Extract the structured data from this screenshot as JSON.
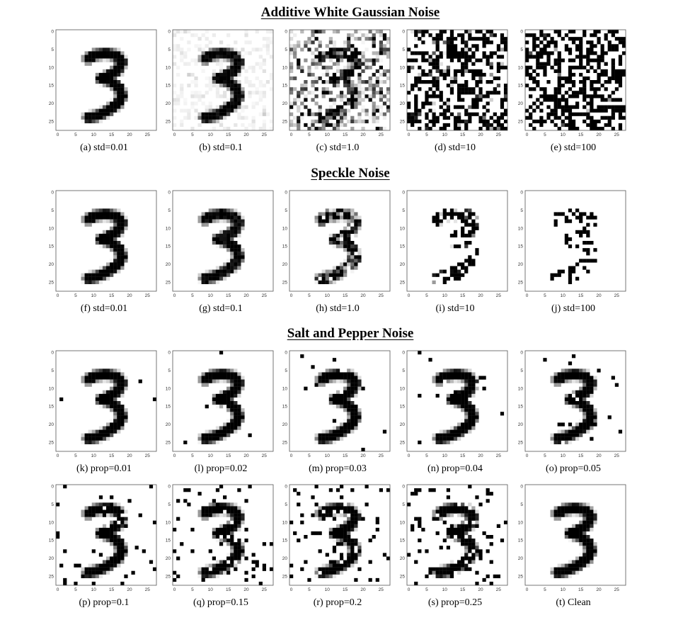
{
  "sections": [
    {
      "title": "Additive White Gaussian Noise",
      "noise": "gaussian",
      "panels": [
        {
          "caption": "(a) std=0.01",
          "param": 0.01
        },
        {
          "caption": "(b) std=0.1",
          "param": 0.1
        },
        {
          "caption": "(c) std=1.0",
          "param": 1.0
        },
        {
          "caption": "(d) std=10",
          "param": 10
        },
        {
          "caption": "(e) std=100",
          "param": 100
        }
      ]
    },
    {
      "title": "Speckle Noise",
      "noise": "speckle",
      "panels": [
        {
          "caption": "(f) std=0.01",
          "param": 0.01
        },
        {
          "caption": "(g) std=0.1",
          "param": 0.1
        },
        {
          "caption": "(h) std=1.0",
          "param": 1.0
        },
        {
          "caption": "(i) std=10",
          "param": 10
        },
        {
          "caption": "(j) std=100",
          "param": 100
        }
      ]
    },
    {
      "title": "Salt and Pepper Noise",
      "noise": "saltpepper",
      "panels": [
        {
          "caption": "(k) prop=0.01",
          "param": 0.01
        },
        {
          "caption": "(l) prop=0.02",
          "param": 0.02
        },
        {
          "caption": "(m) prop=0.03",
          "param": 0.03
        },
        {
          "caption": "(n) prop=0.04",
          "param": 0.04
        },
        {
          "caption": "(o) prop=0.05",
          "param": 0.05
        },
        {
          "caption": "(p) prop=0.1",
          "param": 0.1
        },
        {
          "caption": "(q) prop=0.15",
          "param": 0.15
        },
        {
          "caption": "(r) prop=0.2",
          "param": 0.2
        },
        {
          "caption": "(s) prop=0.25",
          "param": 0.25
        },
        {
          "caption": "(t) Clean",
          "param": 0
        }
      ]
    }
  ],
  "axis_ticks": [
    "0",
    "5",
    "10",
    "15",
    "20",
    "25"
  ],
  "colors": {
    "ink": "#000000",
    "paper": "#ffffff",
    "frame": "#555555"
  }
}
